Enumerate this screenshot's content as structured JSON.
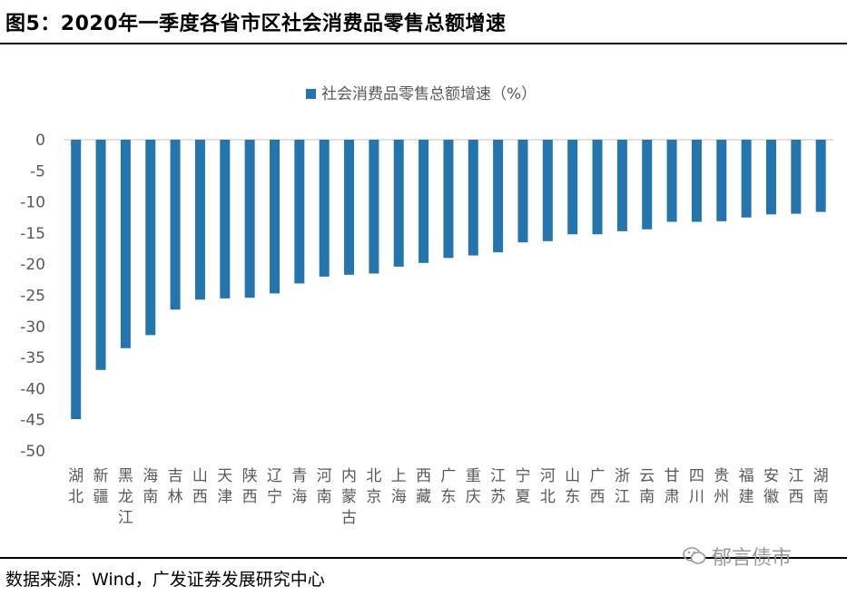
{
  "header": {
    "title": "图5：2020年一季度各省市区社会消费品零售总额增速"
  },
  "footer": {
    "source": "数据来源：Wind，广发证券发展研究中心"
  },
  "watermark": {
    "text": "郁言债市",
    "icon": "wechat-icon"
  },
  "colors": {
    "bar": "#2475ae",
    "axis": "#d9d9d9",
    "text": "#595959"
  },
  "chart_data": {
    "type": "bar",
    "title": "",
    "legend": {
      "label": "社会消费品零售总额增速（%）",
      "position": "top"
    },
    "categories": [
      "湖北",
      "新疆",
      "黑龙江",
      "海南",
      "吉林",
      "山西",
      "天津",
      "陕西",
      "辽宁",
      "青海",
      "河南",
      "内蒙古",
      "北京",
      "上海",
      "西藏",
      "广东",
      "重庆",
      "江苏",
      "宁夏",
      "河北",
      "山东",
      "广西",
      "浙江",
      "云南",
      "甘肃",
      "四川",
      "贵州",
      "福建",
      "安徽",
      "江西",
      "湖南"
    ],
    "series": [
      {
        "name": "社会消费品零售总额增速（%）",
        "values": [
          -44.9,
          -37.0,
          -33.5,
          -31.4,
          -27.3,
          -25.7,
          -25.5,
          -25.4,
          -24.7,
          -23.1,
          -22.0,
          -21.7,
          -21.5,
          -20.4,
          -19.8,
          -19.0,
          -18.6,
          -18.1,
          -16.5,
          -16.3,
          -15.2,
          -15.2,
          -14.7,
          -14.4,
          -13.2,
          -13.2,
          -13.1,
          -12.5,
          -12.0,
          -11.9,
          -11.6
        ]
      }
    ],
    "yticks": [
      0,
      -5,
      -10,
      -15,
      -20,
      -25,
      -30,
      -35,
      -40,
      -45,
      -50
    ],
    "ylim": [
      -50,
      0
    ],
    "grid": false
  }
}
